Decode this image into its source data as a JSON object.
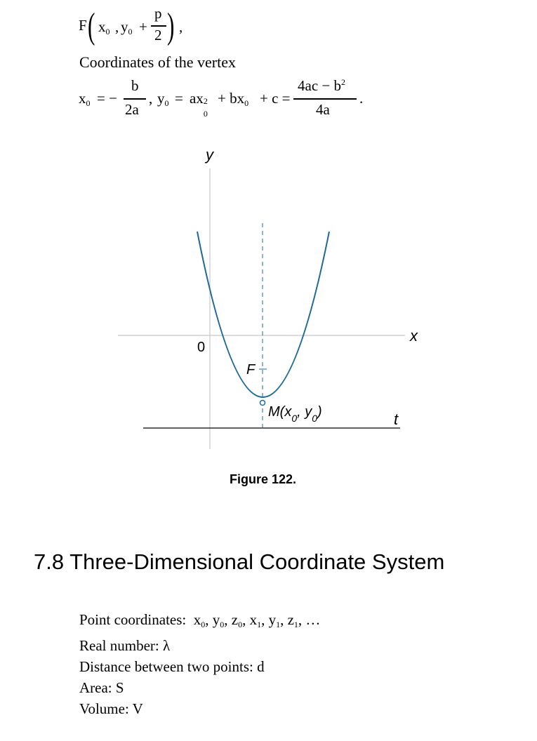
{
  "formula_focus": {
    "lead": "F",
    "x": "x",
    "x_sub": "0",
    "sep": ",",
    "y": "y",
    "y_sub": "0",
    "plus": "+",
    "frac_num": "p",
    "frac_den": "2",
    "trail": ","
  },
  "vertex_heading": "Coordinates of the vertex",
  "formula_vertex": {
    "x0": "x",
    "x0_sub": "0",
    "eq_minus": "= −",
    "frac1_num": "b",
    "frac1_den": "2a",
    "comma": ",",
    "y0": "y",
    "y0_sub": "0",
    "eq": "=",
    "ax": "ax",
    "ax_sup": "2",
    "ax_sub": "0",
    "plus_bx": "+ bx",
    "bx_sub": "0",
    "plus_c": "+ c =",
    "frac2_num_main": "4ac − b",
    "frac2_num_sup": "2",
    "frac2_den": "4a",
    "period": "."
  },
  "figure": {
    "y_axis_label": "y",
    "x_axis_label": "x",
    "origin_label": "0",
    "focus_label": "F",
    "vertex_label_main": "M(x",
    "vertex_label_sub1": "0",
    "vertex_label_mid": ", y",
    "vertex_label_sub2": "0",
    "vertex_label_end": ")",
    "directrix_label": "t",
    "curve_color": "#1f6b94",
    "axis_color": "#c8c8c8"
  },
  "figure_caption": "Figure 122.",
  "section_heading": "7.8 Three-Dimensional Coordinate System",
  "definitions": {
    "point_label": "Point coordinates:",
    "point_items": [
      {
        "v": "x",
        "s": "0"
      },
      {
        "v": "y",
        "s": "0"
      },
      {
        "v": "z",
        "s": "0"
      },
      {
        "v": "x",
        "s": "1"
      },
      {
        "v": "y",
        "s": "1"
      },
      {
        "v": "z",
        "s": "1"
      }
    ],
    "point_ellipsis": "…",
    "real_label": "Real number:",
    "real_symbol": "λ",
    "distance_label": "Distance between two points:",
    "distance_symbol": "d",
    "area_label": "Area:",
    "area_symbol": "S",
    "volume_label": "Volume:",
    "volume_symbol": "V"
  }
}
